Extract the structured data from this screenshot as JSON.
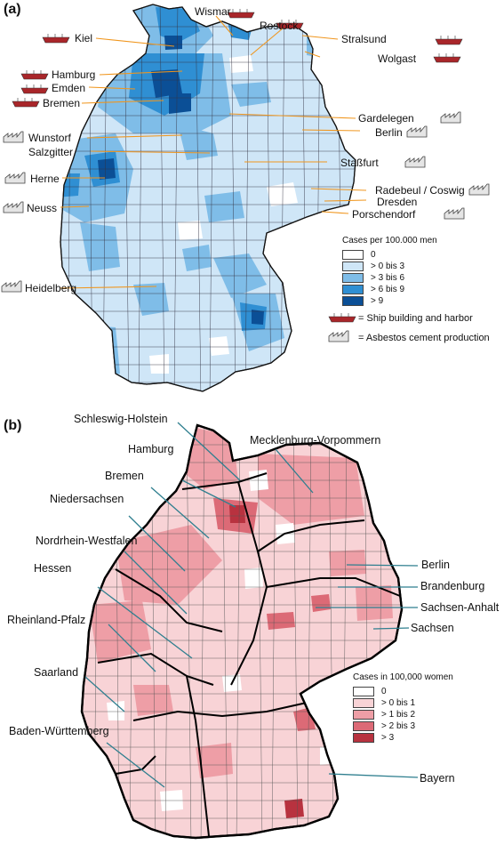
{
  "panel_a": {
    "label": "(a)",
    "legend_title": "Cases per 100.000 men",
    "legend": [
      {
        "label": "0",
        "color": "#ffffff"
      },
      {
        "label": "> 0 bis 3",
        "color": "#cfe6f7"
      },
      {
        "label": "> 3 bis 6",
        "color": "#7fbde8"
      },
      {
        "label": "> 6 bis 9",
        "color": "#2f8fd3"
      },
      {
        "label": "> 9",
        "color": "#0b4f96"
      }
    ],
    "key_ship": "= Ship building and harbor",
    "key_asbestos": "= Asbestos cement production",
    "sites": {
      "wismar": "Wismar",
      "rostock": "Rostock",
      "kiel": "Kiel",
      "stralsund": "Stralsund",
      "wolgast": "Wolgast",
      "hamburg": "Hamburg",
      "emden": "Emden",
      "bremen": "Bremen",
      "gardelegen": "Gardelegen",
      "wunstorf": "Wunstorf",
      "berlin": "Berlin",
      "salzgitter": "Salzgitter",
      "stassfurt": "Staßfurt",
      "herne": "Herne",
      "radebeul": "Radebeul / Coswig",
      "neuss": "Neuss",
      "dresden": "Dresden",
      "porschendorf": "Porschendorf",
      "heidelberg": "Heidelberg"
    }
  },
  "panel_b": {
    "label": "(b)",
    "legend_title": "Cases in 100,000 women",
    "legend": [
      {
        "label": "0",
        "color": "#ffffff"
      },
      {
        "label": "> 0 bis 1",
        "color": "#f8d3d6"
      },
      {
        "label": "> 1 bis 2",
        "color": "#ee9ea6"
      },
      {
        "label": "> 2 bis 3",
        "color": "#dc6a76"
      },
      {
        "label": "> 3",
        "color": "#b8323f"
      }
    ],
    "states": {
      "sh": "Schleswig-Holstein",
      "mv": "Mecklenburg-Vorpommern",
      "hh": "Hamburg",
      "hb": "Bremen",
      "ni": "Niedersachsen",
      "nw": "Nordrhein-Westfalen",
      "berlin": "Berlin",
      "he": "Hessen",
      "bb": "Brandenburg",
      "st": "Sachsen-Anhalt",
      "rp": "Rheinland-Pfalz",
      "sn": "Sachsen",
      "sl": "Saarland",
      "bw": "Baden-Württemberg",
      "by": "Bayern"
    }
  }
}
